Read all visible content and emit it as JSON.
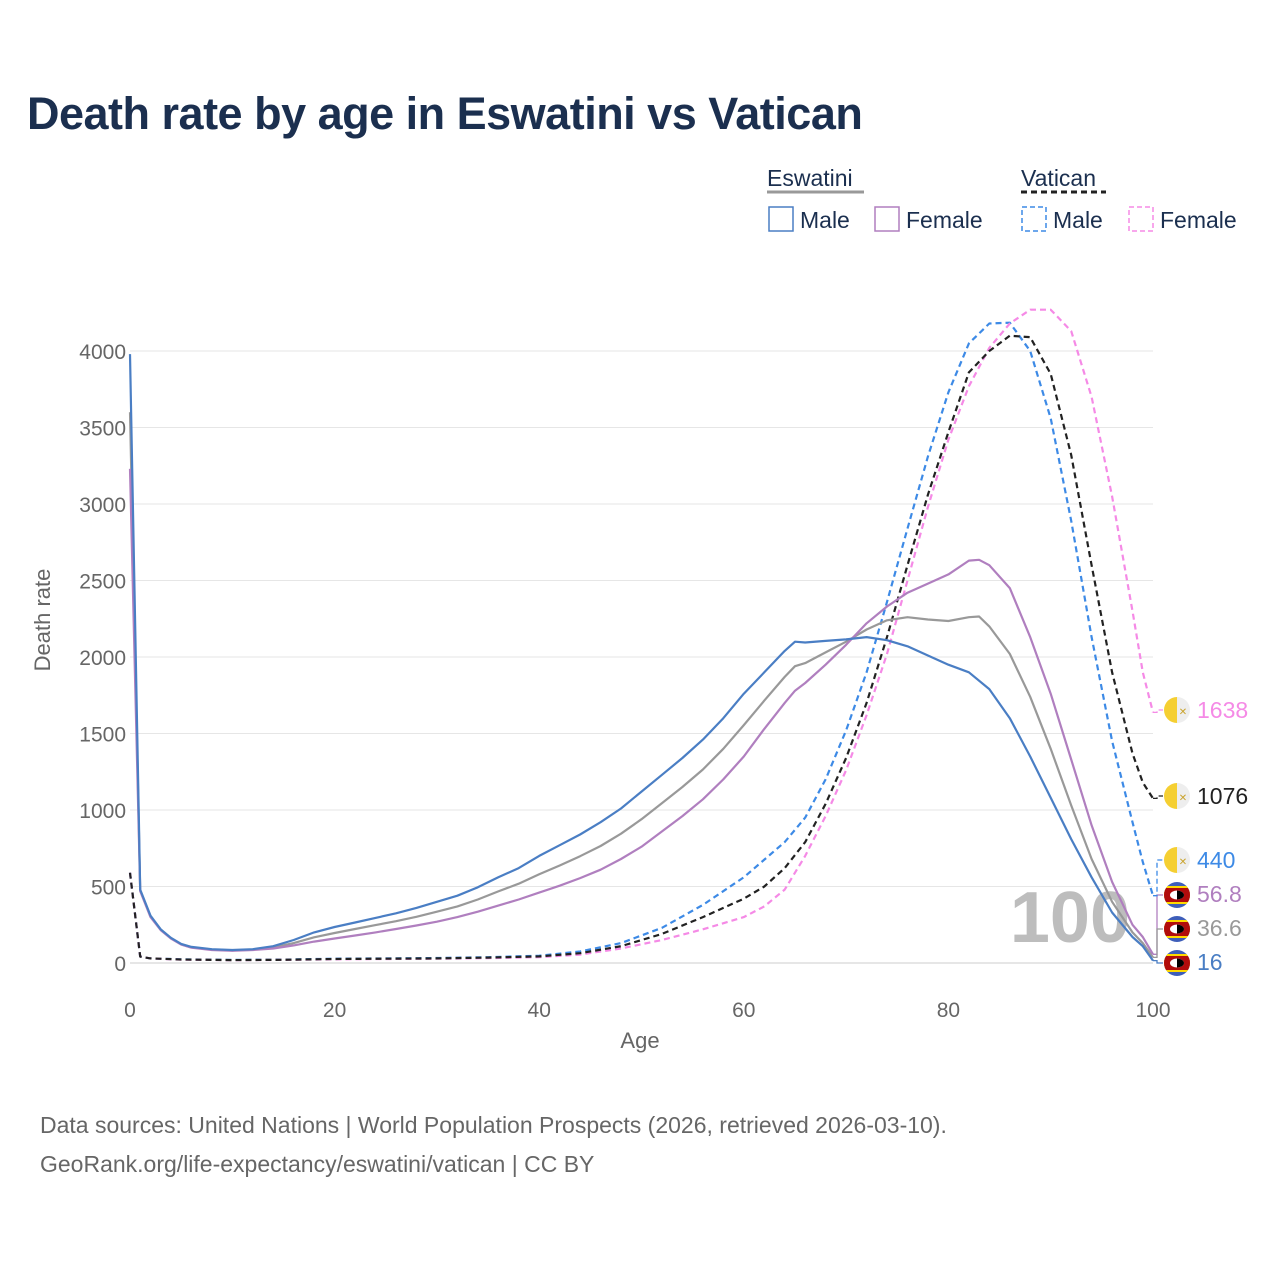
{
  "title": "Death rate by age in Eswatini vs Vatican",
  "footer": {
    "line1": "Data sources: United Nations | World Population Prospects (2026, retrieved 2026-03-10).",
    "line2": "GeoRank.org/life-expectancy/eswatini/vatican | CC BY"
  },
  "legend": {
    "group1": "Eswatini",
    "group2": "Vatican",
    "items": [
      "Male",
      "Female",
      "Male",
      "Female"
    ]
  },
  "colors": {
    "eswatini_male": "#4a7ec4",
    "eswatini_female": "#b07fbf",
    "eswatini_total": "#999999",
    "vatican_male": "#3d8ae6",
    "vatican_female": "#f58ae6",
    "vatican_total": "#222222",
    "title": "#1b2f4f",
    "grid": "#e6e6e6"
  },
  "chart_data": {
    "type": "line",
    "xlabel": "Age",
    "ylabel": "Death rate",
    "xlim": [
      0,
      100
    ],
    "ylim": [
      0,
      4200
    ],
    "x_ticks": [
      "0",
      "20",
      "40",
      "60",
      "80",
      "100"
    ],
    "y_ticks": [
      "0",
      "500",
      "1000",
      "1500",
      "2000",
      "2500",
      "3000",
      "3500",
      "4000"
    ],
    "highlight_age": "100",
    "series": [
      {
        "name": "Eswatini Male",
        "key": "eswatini_male",
        "dash": false,
        "end_label": "16",
        "points": [
          [
            0,
            3980
          ],
          [
            1,
            480
          ],
          [
            2,
            310
          ],
          [
            3,
            220
          ],
          [
            4,
            165
          ],
          [
            5,
            125
          ],
          [
            6,
            105
          ],
          [
            8,
            90
          ],
          [
            10,
            85
          ],
          [
            12,
            90
          ],
          [
            14,
            110
          ],
          [
            16,
            150
          ],
          [
            18,
            200
          ],
          [
            20,
            235
          ],
          [
            22,
            265
          ],
          [
            24,
            295
          ],
          [
            26,
            325
          ],
          [
            28,
            360
          ],
          [
            30,
            400
          ],
          [
            32,
            440
          ],
          [
            34,
            495
          ],
          [
            36,
            560
          ],
          [
            38,
            620
          ],
          [
            40,
            700
          ],
          [
            42,
            770
          ],
          [
            44,
            840
          ],
          [
            46,
            920
          ],
          [
            48,
            1010
          ],
          [
            50,
            1120
          ],
          [
            52,
            1230
          ],
          [
            54,
            1340
          ],
          [
            56,
            1460
          ],
          [
            58,
            1600
          ],
          [
            60,
            1760
          ],
          [
            62,
            1900
          ],
          [
            64,
            2040
          ],
          [
            65,
            2100
          ],
          [
            66,
            2095
          ],
          [
            68,
            2105
          ],
          [
            70,
            2115
          ],
          [
            72,
            2130
          ],
          [
            74,
            2110
          ],
          [
            76,
            2070
          ],
          [
            78,
            2010
          ],
          [
            80,
            1950
          ],
          [
            82,
            1900
          ],
          [
            84,
            1790
          ],
          [
            86,
            1600
          ],
          [
            88,
            1350
          ],
          [
            90,
            1080
          ],
          [
            92,
            810
          ],
          [
            94,
            560
          ],
          [
            96,
            330
          ],
          [
            98,
            170
          ],
          [
            99,
            110
          ],
          [
            100,
            16
          ]
        ]
      },
      {
        "name": "Eswatini Female",
        "key": "eswatini_female",
        "dash": false,
        "end_label": "56.8",
        "points": [
          [
            0,
            3230
          ],
          [
            1,
            470
          ],
          [
            2,
            300
          ],
          [
            3,
            215
          ],
          [
            4,
            160
          ],
          [
            5,
            120
          ],
          [
            6,
            100
          ],
          [
            8,
            85
          ],
          [
            10,
            80
          ],
          [
            12,
            85
          ],
          [
            14,
            95
          ],
          [
            16,
            115
          ],
          [
            18,
            140
          ],
          [
            20,
            160
          ],
          [
            22,
            180
          ],
          [
            24,
            200
          ],
          [
            26,
            222
          ],
          [
            28,
            245
          ],
          [
            30,
            270
          ],
          [
            32,
            300
          ],
          [
            34,
            335
          ],
          [
            36,
            375
          ],
          [
            38,
            415
          ],
          [
            40,
            460
          ],
          [
            42,
            505
          ],
          [
            44,
            555
          ],
          [
            46,
            610
          ],
          [
            48,
            680
          ],
          [
            50,
            760
          ],
          [
            52,
            860
          ],
          [
            54,
            960
          ],
          [
            56,
            1070
          ],
          [
            58,
            1200
          ],
          [
            60,
            1350
          ],
          [
            62,
            1530
          ],
          [
            64,
            1700
          ],
          [
            65,
            1780
          ],
          [
            66,
            1830
          ],
          [
            68,
            1950
          ],
          [
            70,
            2080
          ],
          [
            72,
            2220
          ],
          [
            74,
            2330
          ],
          [
            76,
            2420
          ],
          [
            78,
            2480
          ],
          [
            80,
            2540
          ],
          [
            82,
            2630
          ],
          [
            83,
            2635
          ],
          [
            84,
            2600
          ],
          [
            86,
            2450
          ],
          [
            88,
            2130
          ],
          [
            90,
            1760
          ],
          [
            92,
            1330
          ],
          [
            94,
            900
          ],
          [
            96,
            530
          ],
          [
            98,
            250
          ],
          [
            99,
            170
          ],
          [
            100,
            56.8
          ]
        ]
      },
      {
        "name": "Eswatini Total",
        "key": "eswatini_total",
        "dash": false,
        "end_label": "36.6",
        "points": [
          [
            0,
            3600
          ],
          [
            1,
            475
          ],
          [
            2,
            305
          ],
          [
            3,
            218
          ],
          [
            4,
            162
          ],
          [
            5,
            122
          ],
          [
            6,
            102
          ],
          [
            8,
            88
          ],
          [
            10,
            82
          ],
          [
            12,
            88
          ],
          [
            14,
            102
          ],
          [
            16,
            130
          ],
          [
            18,
            168
          ],
          [
            20,
            196
          ],
          [
            22,
            222
          ],
          [
            24,
            248
          ],
          [
            26,
            273
          ],
          [
            28,
            302
          ],
          [
            30,
            335
          ],
          [
            32,
            370
          ],
          [
            34,
            415
          ],
          [
            36,
            468
          ],
          [
            38,
            518
          ],
          [
            40,
            580
          ],
          [
            42,
            637
          ],
          [
            44,
            698
          ],
          [
            46,
            765
          ],
          [
            48,
            845
          ],
          [
            50,
            940
          ],
          [
            52,
            1045
          ],
          [
            54,
            1150
          ],
          [
            56,
            1265
          ],
          [
            58,
            1400
          ],
          [
            60,
            1555
          ],
          [
            62,
            1715
          ],
          [
            64,
            1870
          ],
          [
            65,
            1940
          ],
          [
            66,
            1960
          ],
          [
            68,
            2030
          ],
          [
            70,
            2100
          ],
          [
            72,
            2180
          ],
          [
            74,
            2240
          ],
          [
            76,
            2260
          ],
          [
            78,
            2245
          ],
          [
            80,
            2235
          ],
          [
            82,
            2260
          ],
          [
            83,
            2265
          ],
          [
            84,
            2200
          ],
          [
            86,
            2020
          ],
          [
            88,
            1740
          ],
          [
            90,
            1400
          ],
          [
            92,
            1030
          ],
          [
            94,
            680
          ],
          [
            96,
            400
          ],
          [
            98,
            200
          ],
          [
            99,
            130
          ],
          [
            100,
            36.6
          ]
        ]
      },
      {
        "name": "Vatican Male",
        "key": "vatican_male",
        "dash": true,
        "end_label": "440",
        "points": [
          [
            0,
            590
          ],
          [
            1,
            42
          ],
          [
            2,
            30
          ],
          [
            5,
            24
          ],
          [
            10,
            20
          ],
          [
            15,
            22
          ],
          [
            20,
            28
          ],
          [
            25,
            30
          ],
          [
            30,
            33
          ],
          [
            35,
            38
          ],
          [
            40,
            48
          ],
          [
            44,
            75
          ],
          [
            48,
            130
          ],
          [
            52,
            230
          ],
          [
            56,
            380
          ],
          [
            60,
            560
          ],
          [
            64,
            790
          ],
          [
            66,
            950
          ],
          [
            68,
            1200
          ],
          [
            70,
            1520
          ],
          [
            72,
            1900
          ],
          [
            74,
            2360
          ],
          [
            76,
            2840
          ],
          [
            78,
            3310
          ],
          [
            80,
            3730
          ],
          [
            82,
            4050
          ],
          [
            84,
            4180
          ],
          [
            86,
            4185
          ],
          [
            88,
            4000
          ],
          [
            90,
            3560
          ],
          [
            92,
            2890
          ],
          [
            94,
            2130
          ],
          [
            96,
            1450
          ],
          [
            98,
            920
          ],
          [
            99,
            660
          ],
          [
            100,
            440
          ]
        ]
      },
      {
        "name": "Vatican Female",
        "key": "vatican_female",
        "dash": true,
        "end_label": "1638",
        "points": [
          [
            0,
            590
          ],
          [
            1,
            42
          ],
          [
            2,
            30
          ],
          [
            5,
            22
          ],
          [
            10,
            18
          ],
          [
            15,
            20
          ],
          [
            20,
            24
          ],
          [
            25,
            26
          ],
          [
            30,
            28
          ],
          [
            35,
            32
          ],
          [
            40,
            38
          ],
          [
            44,
            55
          ],
          [
            48,
            95
          ],
          [
            52,
            150
          ],
          [
            56,
            220
          ],
          [
            60,
            300
          ],
          [
            62,
            370
          ],
          [
            64,
            480
          ],
          [
            66,
            700
          ],
          [
            68,
            960
          ],
          [
            70,
            1260
          ],
          [
            72,
            1620
          ],
          [
            74,
            2020
          ],
          [
            76,
            2500
          ],
          [
            78,
            2980
          ],
          [
            80,
            3420
          ],
          [
            82,
            3770
          ],
          [
            84,
            4020
          ],
          [
            86,
            4180
          ],
          [
            88,
            4270
          ],
          [
            90,
            4270
          ],
          [
            92,
            4130
          ],
          [
            94,
            3700
          ],
          [
            96,
            3050
          ],
          [
            98,
            2300
          ],
          [
            99,
            1900
          ],
          [
            100,
            1638
          ]
        ]
      },
      {
        "name": "Vatican Total",
        "key": "vatican_total",
        "dash": true,
        "end_label": "1076",
        "points": [
          [
            0,
            590
          ],
          [
            1,
            42
          ],
          [
            2,
            30
          ],
          [
            5,
            23
          ],
          [
            10,
            19
          ],
          [
            15,
            21
          ],
          [
            20,
            26
          ],
          [
            25,
            28
          ],
          [
            30,
            30
          ],
          [
            35,
            35
          ],
          [
            40,
            43
          ],
          [
            44,
            64
          ],
          [
            48,
            110
          ],
          [
            52,
            190
          ],
          [
            56,
            300
          ],
          [
            60,
            420
          ],
          [
            62,
            500
          ],
          [
            64,
            620
          ],
          [
            66,
            790
          ],
          [
            68,
            1040
          ],
          [
            70,
            1340
          ],
          [
            72,
            1700
          ],
          [
            74,
            2130
          ],
          [
            76,
            2600
          ],
          [
            78,
            3060
          ],
          [
            80,
            3470
          ],
          [
            82,
            3860
          ],
          [
            84,
            4000
          ],
          [
            86,
            4100
          ],
          [
            88,
            4090
          ],
          [
            90,
            3850
          ],
          [
            92,
            3320
          ],
          [
            94,
            2600
          ],
          [
            96,
            1900
          ],
          [
            98,
            1370
          ],
          [
            99,
            1180
          ],
          [
            100,
            1076
          ]
        ]
      }
    ]
  }
}
